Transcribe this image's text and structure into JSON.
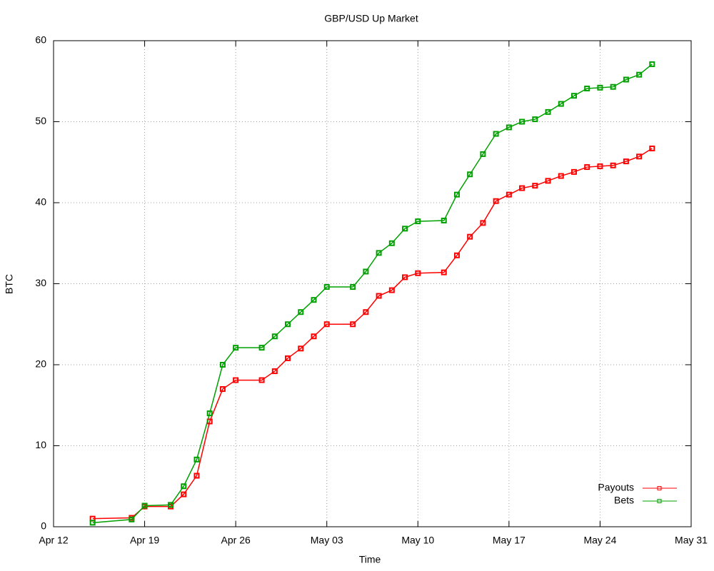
{
  "chart_data": {
    "type": "line",
    "title": "GBP/USD Up Market",
    "x_label": "Time",
    "y_label": "BTC",
    "x": [
      "Apr 15",
      "Apr 18",
      "Apr 19",
      "Apr 21",
      "Apr 22",
      "Apr 23",
      "Apr 24",
      "Apr 25",
      "Apr 26",
      "Apr 28",
      "Apr 29",
      "Apr 30",
      "May 01",
      "May 02",
      "May 03",
      "May 05",
      "May 06",
      "May 07",
      "May 08",
      "May 09",
      "May 10",
      "May 12",
      "May 13",
      "May 14",
      "May 15",
      "May 16",
      "May 17",
      "May 18",
      "May 19",
      "May 20",
      "May 21",
      "May 22",
      "May 23",
      "May 24",
      "May 25",
      "May 26",
      "May 27",
      "May 28"
    ],
    "series": [
      {
        "name": "Payouts",
        "color": "#ff0000",
        "values": [
          1.0,
          1.1,
          2.5,
          2.5,
          4,
          6.3,
          13,
          17,
          18.1,
          18.1,
          19.2,
          20.8,
          22,
          23.5,
          25,
          25,
          26.5,
          28.5,
          29.2,
          30.8,
          31.3,
          31.4,
          33.5,
          35.8,
          37.5,
          40.2,
          41,
          41.8,
          42.1,
          42.7,
          43.3,
          43.8,
          44.4,
          44.5,
          44.6,
          45.1,
          45.7,
          46.7
        ]
      },
      {
        "name": "Bets",
        "color": "#00a000",
        "values": [
          0.5,
          0.9,
          2.6,
          2.7,
          5,
          8.3,
          14,
          20,
          22.1,
          22.1,
          23.5,
          25,
          26.5,
          28,
          29.6,
          29.6,
          31.5,
          33.8,
          35,
          36.8,
          37.7,
          37.8,
          41,
          43.5,
          46,
          48.5,
          49.3,
          50,
          50.3,
          51.2,
          52.2,
          53.2,
          54.1,
          54.2,
          54.3,
          55.2,
          55.8,
          57.1
        ]
      }
    ],
    "xlim": [
      "Apr 12",
      "May 31"
    ],
    "xticks": [
      "Apr 12",
      "Apr 19",
      "Apr 26",
      "May 03",
      "May 10",
      "May 17",
      "May 24",
      "May 31"
    ],
    "ylim": [
      0,
      60
    ],
    "yticks": [
      0,
      10,
      20,
      30,
      40,
      50,
      60
    ],
    "grid": true,
    "legend": "bottom-right"
  }
}
